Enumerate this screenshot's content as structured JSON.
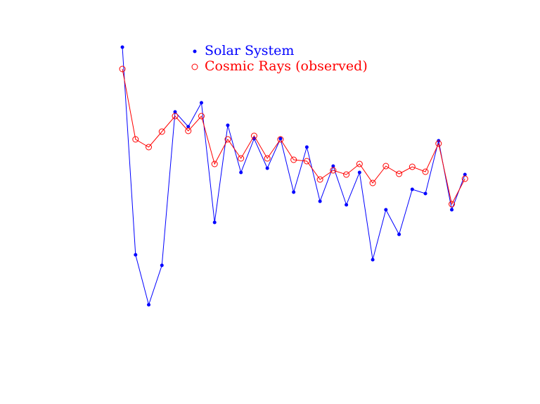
{
  "chart_data": {
    "type": "line",
    "x": [
      1,
      2,
      3,
      4,
      5,
      6,
      7,
      8,
      9,
      10,
      11,
      12,
      13,
      14,
      15,
      16,
      17,
      18,
      19,
      20,
      21,
      22,
      23,
      24,
      25,
      26,
      27
    ],
    "xlim": [
      0,
      28
    ],
    "ylim": [
      0,
      500
    ],
    "series": [
      {
        "name": "Solar System",
        "color": "#0000ff",
        "marker": "dot",
        "values": [
          457,
          162,
          91,
          147,
          365,
          344,
          378,
          208,
          346,
          279,
          327,
          285,
          327,
          251,
          315,
          238,
          288,
          233,
          279,
          155,
          226,
          191,
          255,
          249,
          324,
          226,
          276
        ]
      },
      {
        "name": "Cosmic Rays (observed)",
        "color": "#ff0000",
        "marker": "circle",
        "values": [
          426,
          326,
          315,
          337,
          359,
          338,
          359,
          291,
          326,
          299,
          331,
          299,
          326,
          297,
          295,
          269,
          282,
          276,
          291,
          264,
          288,
          277,
          287,
          280,
          320,
          234,
          270
        ]
      }
    ]
  }
}
